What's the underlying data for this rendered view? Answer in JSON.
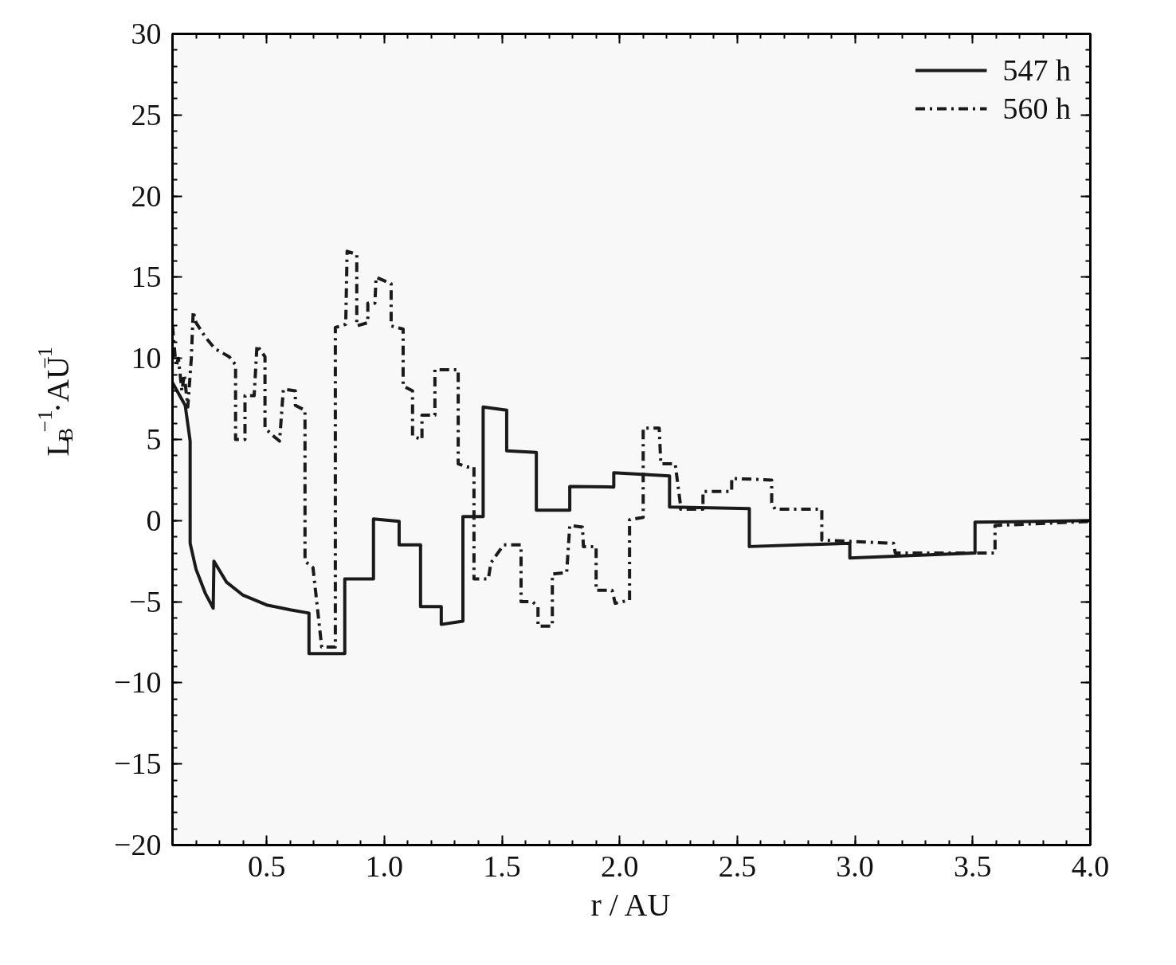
{
  "chart_data": {
    "type": "line",
    "xlabel": "r / AU",
    "ylabel": "L$_{B}$$^{−1}$·AU$^{−1}$",
    "xlim": [
      0.1,
      4.0
    ],
    "ylim": [
      -20,
      30
    ],
    "xticks": [
      {
        "value": 0.5,
        "label": "0.5"
      },
      {
        "value": 1.0,
        "label": "1.0"
      },
      {
        "value": 1.5,
        "label": "1.5"
      },
      {
        "value": 2.0,
        "label": "2.0"
      },
      {
        "value": 2.5,
        "label": "2.5"
      },
      {
        "value": 3.0,
        "label": "3.0"
      },
      {
        "value": 3.5,
        "label": "3.5"
      },
      {
        "value": 4.0,
        "label": "4.0"
      }
    ],
    "yticks": [
      -20,
      -15,
      -10,
      -5,
      0,
      5,
      10,
      15,
      20,
      25,
      30
    ],
    "grid": false,
    "legend": "top right",
    "marker": "none",
    "series": [
      {
        "name": "547 h",
        "color": "#1a1a1a",
        "line_style": "solid",
        "x": [
          0.1,
          0.154,
          0.175,
          0.175,
          0.2,
          0.24,
          0.273,
          0.276,
          0.33,
          0.4,
          0.5,
          0.6,
          0.68,
          0.68,
          0.832,
          0.832,
          0.954,
          0.954,
          1.063,
          1.063,
          1.154,
          1.154,
          1.242,
          1.242,
          1.334,
          1.334,
          1.42,
          1.42,
          1.52,
          1.52,
          1.646,
          1.646,
          1.788,
          1.788,
          1.975,
          1.975,
          2.212,
          2.212,
          2.551,
          2.551,
          2.978,
          2.978,
          3.51,
          3.51,
          4.0
        ],
        "values": [
          8.5,
          7.1,
          4.9,
          -1.4,
          -3.0,
          -4.5,
          -5.4,
          -2.5,
          -3.8,
          -4.6,
          -5.2,
          -5.5,
          -5.7,
          -8.2,
          -8.2,
          -3.6,
          -3.6,
          0.1,
          -0.05,
          -1.5,
          -1.5,
          -5.3,
          -5.3,
          -6.4,
          -6.2,
          0.25,
          0.25,
          7.0,
          6.8,
          4.3,
          4.2,
          0.64,
          0.64,
          2.1,
          2.07,
          2.95,
          2.75,
          0.84,
          0.74,
          -1.6,
          -1.4,
          -2.3,
          -2.0,
          -0.1,
          0.0
        ]
      },
      {
        "name": "560 h",
        "color": "#1a1a1a",
        "line_style": "dashed",
        "x": [
          0.1,
          0.115,
          0.125,
          0.14,
          0.15,
          0.165,
          0.18,
          0.188,
          0.2,
          0.24,
          0.28,
          0.341,
          0.368,
          0.368,
          0.408,
          0.408,
          0.447,
          0.459,
          0.493,
          0.493,
          0.53,
          0.555,
          0.571,
          0.622,
          0.622,
          0.663,
          0.663,
          0.697,
          0.734,
          0.792,
          0.792,
          0.836,
          0.842,
          0.883,
          0.883,
          0.93,
          0.93,
          0.96,
          0.965,
          1.029,
          1.029,
          1.08,
          1.08,
          1.12,
          1.12,
          1.16,
          1.16,
          1.215,
          1.215,
          1.314,
          1.314,
          1.351,
          1.381,
          1.381,
          1.442,
          1.453,
          1.507,
          1.537,
          1.581,
          1.581,
          1.629,
          1.653,
          1.653,
          1.714,
          1.714,
          1.775,
          1.788,
          1.842,
          1.846,
          1.9,
          1.9,
          1.968,
          1.981,
          2.042,
          2.042,
          2.1,
          2.1,
          2.168,
          2.175,
          2.236,
          2.259,
          2.259,
          2.354,
          2.354,
          2.476,
          2.476,
          2.646,
          2.646,
          2.66,
          2.859,
          2.859,
          3.164,
          3.171,
          3.595,
          3.595,
          4.0
        ],
        "values": [
          12.0,
          9.5,
          10.0,
          8.0,
          9.0,
          7.0,
          10.0,
          12.9,
          12.2,
          11.3,
          10.6,
          10.1,
          9.6,
          5.0,
          5.0,
          7.7,
          7.7,
          10.8,
          10.1,
          5.7,
          5.2,
          4.9,
          8.1,
          8.0,
          7.1,
          6.8,
          -2.5,
          -2.9,
          -7.8,
          -7.8,
          11.9,
          12.1,
          16.6,
          16.4,
          12.0,
          12.2,
          13.4,
          13.4,
          15.0,
          14.6,
          12.0,
          11.8,
          8.3,
          8.0,
          5.2,
          5.0,
          6.5,
          6.5,
          9.3,
          9.3,
          3.5,
          3.3,
          3.3,
          -3.6,
          -3.6,
          -2.6,
          -1.5,
          -1.5,
          -1.5,
          -5.0,
          -5.0,
          -5.3,
          -6.5,
          -6.5,
          -3.3,
          -3.2,
          -0.3,
          -0.4,
          -1.6,
          -1.6,
          -4.3,
          -4.3,
          -5.1,
          -4.9,
          0.05,
          0.2,
          5.7,
          5.7,
          3.5,
          3.5,
          0.9,
          0.7,
          0.7,
          1.8,
          1.8,
          2.6,
          2.5,
          1.1,
          0.7,
          0.7,
          -1.2,
          -1.4,
          -2.0,
          -2.0,
          -0.3,
          -0.05
        ]
      }
    ]
  }
}
